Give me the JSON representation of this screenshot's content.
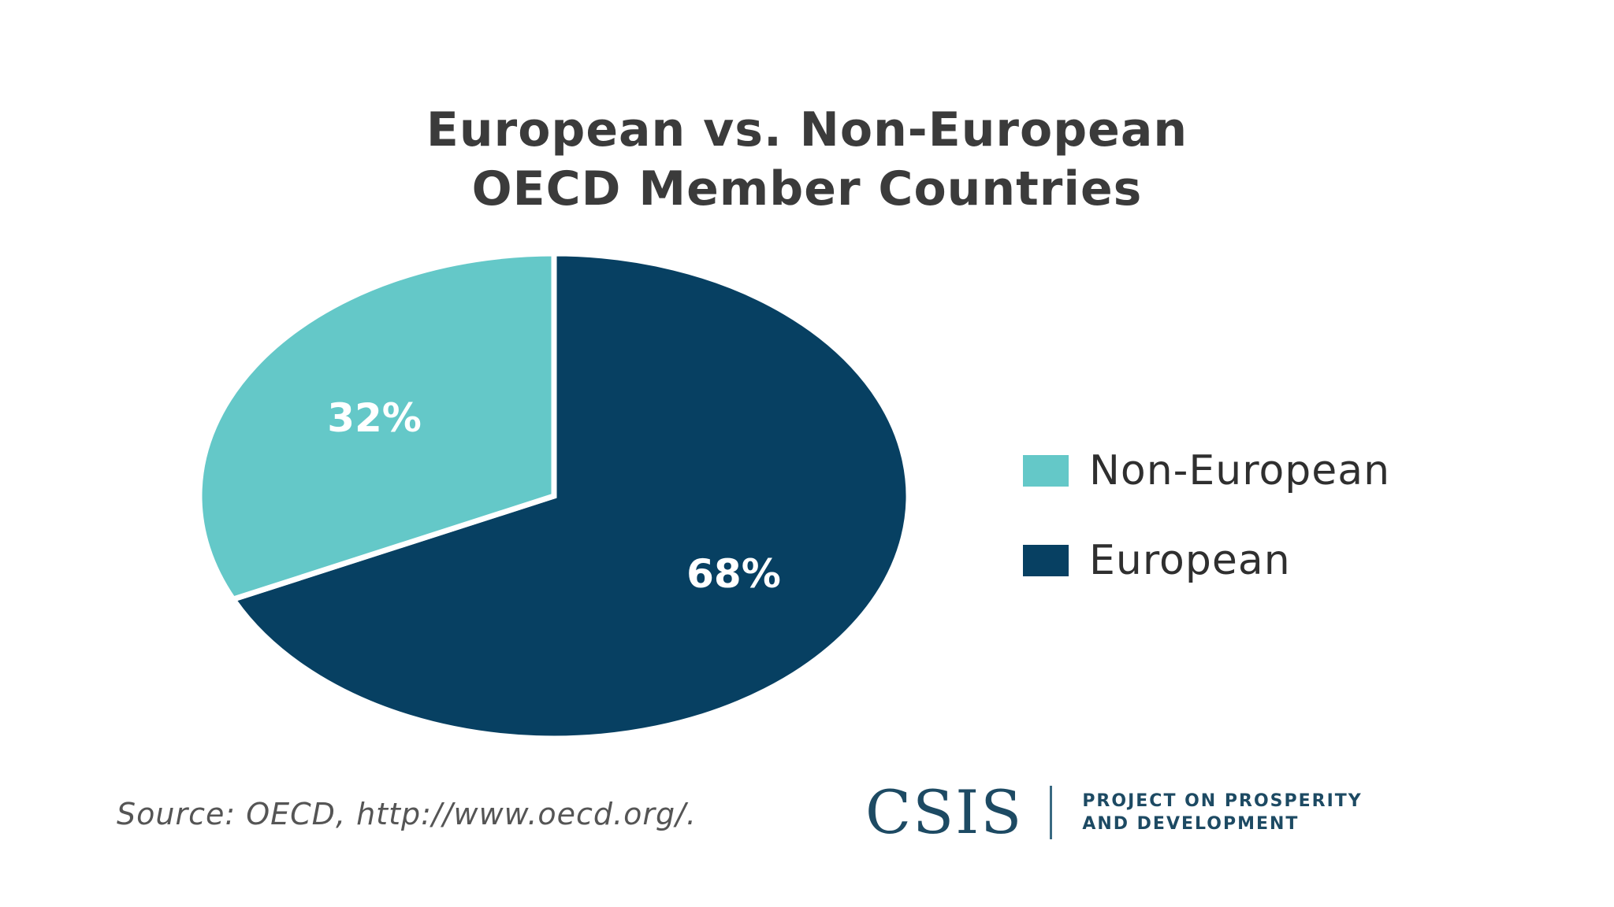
{
  "chart_data": {
    "type": "pie",
    "title_lines": [
      "European vs. Non-European",
      "OECD Member Countries"
    ],
    "slices": [
      {
        "name": "European",
        "value": 68,
        "label": "68%",
        "color": "#074062"
      },
      {
        "name": "Non-European",
        "value": 32,
        "label": "32%",
        "color": "#64c8c8"
      }
    ],
    "legend": [
      {
        "name": "Non-European",
        "color": "#64c8c8"
      },
      {
        "name": "European",
        "color": "#074062"
      }
    ],
    "legend_position": "right"
  },
  "footer": {
    "source": "Source: OECD, http://www.oecd.org/.",
    "logo_mark": "CSIS",
    "logo_lines": [
      "PROJECT ON PROSPERITY",
      "AND DEVELOPMENT"
    ]
  }
}
